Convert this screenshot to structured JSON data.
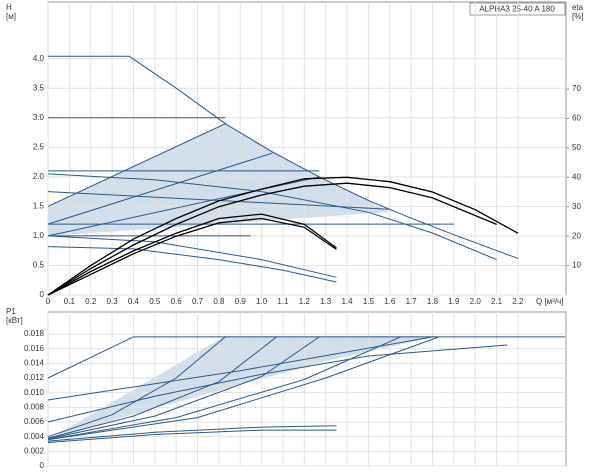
{
  "chart_data": [
    {
      "type": "line",
      "title": "ALPHA3 25-40 A 180",
      "ylabel": "H",
      "yunit": "[м]",
      "y2label": "eta",
      "y2unit": "[%]",
      "xlabel": "Q [м³/ч]",
      "xlim": [
        0,
        2.425
      ],
      "ylim": [
        0,
        4.96
      ],
      "y2lim": [
        0,
        99.6
      ],
      "grid": true,
      "xticks": [
        0,
        0.1,
        0.2,
        0.3,
        0.4,
        0.5,
        0.6,
        0.7,
        0.8,
        0.9,
        {
          "value": 1,
          "label": "1.0"
        },
        1.1,
        1.2,
        1.3,
        1.4,
        1.5,
        1.6,
        1.7,
        1.8,
        1.9,
        {
          "value": 2,
          "label": "2.0"
        },
        2.1,
        2.2
      ],
      "yticks": [
        0,
        0.5,
        {
          "value": 1,
          "label": "1.0"
        },
        1.5,
        {
          "value": 2,
          "label": "2.0"
        },
        2.5,
        {
          "value": 3,
          "label": "3.0"
        },
        3.5,
        {
          "value": 4,
          "label": "4.0"
        }
      ],
      "y2ticks": [
        10,
        20,
        30,
        40,
        50,
        60,
        70
      ],
      "series": [
        {
          "color": "#2b5a8a",
          "x": [
            0,
            0.38,
            0.6,
            0.83,
            1.05,
            1.27,
            1.5,
            1.7,
            1.9,
            2.2
          ],
          "values": [
            4.04,
            4.04,
            3.5,
            2.9,
            2.42,
            2.0,
            1.6,
            1.3,
            1.02,
            0.62
          ]
        },
        {
          "color": "#2b5a8a",
          "x": [
            0,
            0.83
          ],
          "values": [
            3.0,
            3.0
          ]
        },
        {
          "color": "#2b5a8a",
          "x": [
            0,
            1.27
          ],
          "values": [
            2.1,
            2.1
          ]
        },
        {
          "color": "#2b5a8a",
          "x": [
            0,
            0.83
          ],
          "values": [
            1.5,
            2.9
          ]
        },
        {
          "color": "#2b5a8a",
          "x": [
            0,
            1.05
          ],
          "values": [
            1.2,
            2.4
          ]
        },
        {
          "color": "#2b5a8a",
          "x": [
            0,
            1.27
          ],
          "values": [
            1.0,
            2.0
          ]
        },
        {
          "color": "#2b5a8a",
          "x": [
            0,
            0.5,
            1.0,
            1.5,
            1.8,
            2.1
          ],
          "values": [
            2.05,
            1.95,
            1.75,
            1.4,
            1.05,
            0.6
          ]
        },
        {
          "color": "#2b5a8a",
          "x": [
            0,
            1.6
          ],
          "values": [
            1.75,
            1.45
          ]
        },
        {
          "color": "#2b5a8a",
          "x": [
            0,
            1.9
          ],
          "values": [
            1.2,
            1.2
          ]
        },
        {
          "color": "#2b5a8a",
          "x": [
            0,
            0.95
          ],
          "values": [
            1.0,
            1.0
          ]
        },
        {
          "color": "#2b5a8a",
          "x": [
            0,
            0.4,
            0.8,
            1.1,
            1.35
          ],
          "values": [
            0.82,
            0.78,
            0.6,
            0.42,
            0.22
          ]
        },
        {
          "color": "#2b5a8a",
          "x": [
            0,
            0.5,
            1.0,
            1.35
          ],
          "values": [
            1.0,
            0.9,
            0.6,
            0.3
          ]
        },
        {
          "color": "#000000",
          "axis": "y2",
          "x": [
            0,
            0.2,
            0.4,
            0.6,
            0.8,
            1.0,
            1.2,
            1.4,
            1.6,
            1.8,
            2.0,
            2.2
          ],
          "values": [
            0,
            10,
            19,
            26,
            32,
            36,
            39.5,
            40,
            38.5,
            35,
            29,
            21
          ]
        },
        {
          "color": "#000000",
          "axis": "y2",
          "x": [
            0,
            0.2,
            0.4,
            0.6,
            0.8,
            1.0,
            1.2,
            1.4,
            1.6,
            1.8,
            2.1
          ],
          "values": [
            0,
            9,
            17,
            24,
            30,
            34,
            37,
            38,
            36.5,
            33,
            24
          ]
        },
        {
          "color": "#000000",
          "axis": "y2",
          "x": [
            0,
            0.2,
            0.4,
            0.6,
            0.8,
            1.0,
            1.2,
            1.35
          ],
          "values": [
            0,
            8,
            15,
            21,
            26,
            27.5,
            24,
            16
          ]
        },
        {
          "color": "#000000",
          "axis": "y2",
          "x": [
            0,
            0.2,
            0.4,
            0.6,
            0.8,
            1.0,
            1.2,
            1.35
          ],
          "values": [
            0,
            7,
            14,
            20,
            24.5,
            26,
            23,
            15.5
          ]
        }
      ]
    },
    {
      "type": "line",
      "ylabel": "P1",
      "yunit": "[кВт]",
      "xlim": [
        0,
        2.425
      ],
      "ylim": [
        0,
        0.021
      ],
      "grid": true,
      "yticks": [
        0,
        0.002,
        0.004,
        0.006,
        0.008,
        {
          "value": 0.01,
          "label": "0.010"
        },
        0.012,
        0.014,
        0.016,
        0.018
      ],
      "series": [
        {
          "color": "#2b5a8a",
          "x": [
            0.4,
            2.42
          ],
          "values": [
            0.0176,
            0.0176
          ]
        },
        {
          "color": "#2b5a8a",
          "x": [
            0,
            0.4
          ],
          "values": [
            0.012,
            0.0176
          ]
        },
        {
          "color": "#2b5a8a",
          "x": [
            0,
            0.3,
            0.6,
            0.83
          ],
          "values": [
            0.004,
            0.007,
            0.012,
            0.0176
          ]
        },
        {
          "color": "#2b5a8a",
          "x": [
            0,
            0.4,
            0.8,
            1.07
          ],
          "values": [
            0.0038,
            0.0068,
            0.0115,
            0.0176
          ]
        },
        {
          "color": "#2b5a8a",
          "x": [
            0,
            0.5,
            1.0,
            1.27
          ],
          "values": [
            0.0037,
            0.0068,
            0.0122,
            0.0176
          ]
        },
        {
          "color": "#2b5a8a",
          "x": [
            0,
            0.6,
            1.2,
            1.65
          ],
          "values": [
            0.0036,
            0.0066,
            0.0118,
            0.0176
          ]
        },
        {
          "color": "#2b5a8a",
          "x": [
            0,
            0.7,
            1.3,
            1.83
          ],
          "values": [
            0.0036,
            0.0066,
            0.012,
            0.0176
          ]
        },
        {
          "color": "#2b5a8a",
          "x": [
            0,
            0.5,
            1.0,
            1.5,
            2.15
          ],
          "values": [
            0.006,
            0.0095,
            0.0125,
            0.015,
            0.0165
          ]
        },
        {
          "color": "#2b5a8a",
          "x": [
            0,
            0.9,
            1.8
          ],
          "values": [
            0.009,
            0.013,
            0.0176
          ]
        },
        {
          "color": "#2b5a8a",
          "x": [
            0,
            0.5,
            1.0,
            1.35
          ],
          "values": [
            0.0034,
            0.0046,
            0.0053,
            0.0055
          ]
        },
        {
          "color": "#2b5a8a",
          "x": [
            0,
            0.5,
            1.0,
            1.35
          ],
          "values": [
            0.0032,
            0.0043,
            0.0049,
            0.0049
          ]
        }
      ]
    }
  ]
}
